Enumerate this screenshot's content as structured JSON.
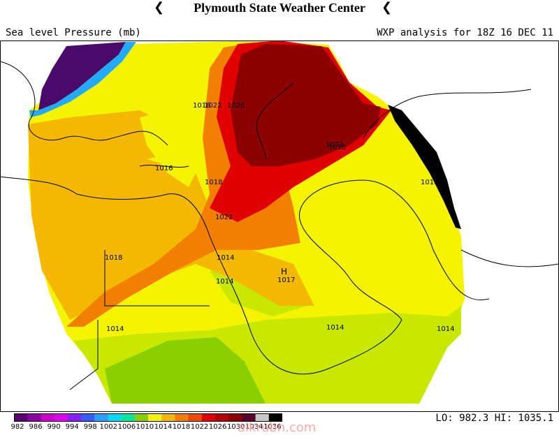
{
  "header": {
    "title": "Plymouth State Weather Center",
    "flag_glyph": "❮"
  },
  "subhead": {
    "field_label": "Sea level Pressure (mb)",
    "analysis_label": "WXP analysis for 18Z 16 DEC 11"
  },
  "map": {
    "isobar_labels": [
      "1018",
      "1022",
      "1026",
      "1016",
      "1018",
      "1022",
      "1018",
      "1022",
      "1018",
      "1018",
      "1014",
      "1017",
      "1014",
      "1014",
      "1014",
      "1014"
    ],
    "high_marker": "H",
    "fill_colors": {
      "p982": "#4a0a6a",
      "p1010": "#22aaff",
      "p1014": "#8ccf00",
      "p1016": "#c8e800",
      "p1018": "#f4f400",
      "p1020": "#f4b800",
      "p1022": "#f28000",
      "p1024": "#f04a00",
      "p1026": "#e00000",
      "p1030": "#8c0000",
      "p1036": "#000000"
    }
  },
  "colorbar": {
    "labels": [
      "982",
      "986",
      "990",
      "994",
      "998",
      "1002",
      "1006",
      "1010",
      "1014",
      "1018",
      "1022",
      "1026",
      "1030",
      "1034",
      "1036"
    ],
    "colors": [
      "#5a0070",
      "#8a00a0",
      "#cc00cc",
      "#e000f0",
      "#8a20ff",
      "#3a5cff",
      "#2aa0ff",
      "#00d8ff",
      "#00e8a0",
      "#8ccf00",
      "#f4f400",
      "#f4b800",
      "#f28000",
      "#f04a00",
      "#e00000",
      "#b40000",
      "#8c0000",
      "#5a0030",
      "#c8c8c8",
      "#000000"
    ]
  },
  "footer": {
    "lohi": "LO: 982.3   HI: 1035.1",
    "watermark": "alkrubn.com"
  }
}
